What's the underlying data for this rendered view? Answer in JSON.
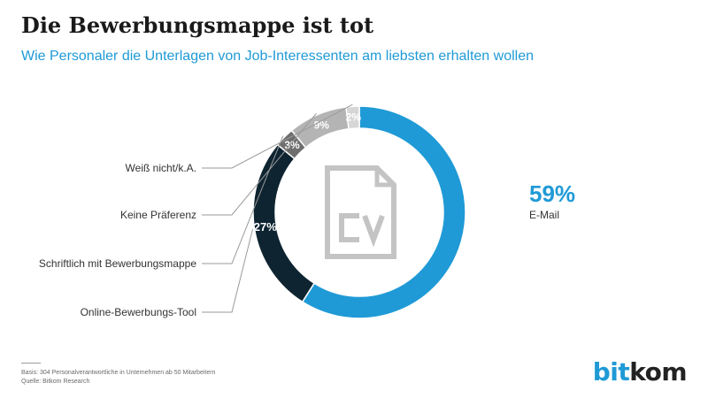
{
  "header": {
    "title": "Die Bewerbungsmappe ist tot",
    "subtitle": "Wie Personaler die Unterlagen von Job-Interessenten am liebsten erhalten wollen"
  },
  "footer": {
    "basis": "Basis: 304 Personalverantwortliche in Unternehmen ab 50 Mitarbeitern",
    "source": "Quelle: Bitkom Research"
  },
  "logo": {
    "part1": "bit",
    "part2": "kom"
  },
  "center_icon": "cv-document-icon",
  "colors": {
    "email": "#1f9ad6",
    "online_tool": "#0e2431",
    "schriftlich": "#6e6e6e",
    "keine_praeferenz": "#b4b4b4",
    "weiss_nicht": "#d6d6d6",
    "leader": "#9a9a9a",
    "icon": "#c4c4c4"
  },
  "chart_data": {
    "type": "pie",
    "variant": "donut",
    "title": "Die Bewerbungsmappe ist tot",
    "subtitle": "Wie Personaler die Unterlagen von Job-Interessenten am liebsten erhalten wollen",
    "unit": "%",
    "slices": [
      {
        "label": "E-Mail",
        "value": 59,
        "display": "59%",
        "color": "#1f9ad6"
      },
      {
        "label": "Online-Bewerbungs-Tool",
        "value": 27,
        "display": "27%",
        "color": "#0e2431"
      },
      {
        "label": "Schriftlich mit Bewerbungsmappe",
        "value": 3,
        "display": "3%",
        "color": "#6e6e6e"
      },
      {
        "label": "Keine Präferenz",
        "value": 9,
        "display": "9%",
        "color": "#b4b4b4"
      },
      {
        "label": "Weiß nicht/k.A.",
        "value": 2,
        "display": "2%",
        "color": "#d6d6d6"
      }
    ]
  }
}
